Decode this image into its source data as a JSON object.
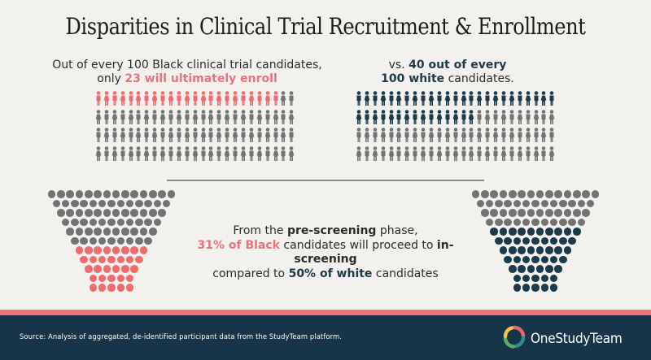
{
  "title": "Disparities in Clinical Trial Recruitment & Enrollment",
  "colors": {
    "background": "#F3F1EE",
    "black_highlight": "#F06B6E",
    "white_highlight": "#1B3A4B",
    "neutral": "#737373",
    "footer_bg": "#163548",
    "footer_strip": "#F07577"
  },
  "enrollment": {
    "left_caption": {
      "line1": "Out of every 100 Black clinical trial candidates,",
      "line2_prefix": "only ",
      "line2_highlight": "23 will ultimately enroll"
    },
    "right_caption": {
      "line1_prefix": "vs. ",
      "line1_highlight": "40 out of every",
      "line2_highlight": "100 white",
      "line2_suffix": " candidates."
    }
  },
  "screening": {
    "line1_prefix": "From the ",
    "line1_bold": "pre-screening",
    "line1_suffix": " phase,",
    "line2_highlight": "31% of Black",
    "line2_middle": " candidates will proceed to ",
    "line2_bold": "in-screening",
    "line3_prefix": "compared to ",
    "line3_highlight": "50% of white",
    "line3_suffix": " candidates"
  },
  "chart_data": [
    {
      "type": "pictogram",
      "title": "Black clinical trial candidates enrolling (out of 100)",
      "grid": {
        "columns": 25,
        "rows": 4
      },
      "total": 100,
      "highlighted": 23,
      "highlight_color": "#F06B6E",
      "neutral_color": "#737373",
      "label": "23 will ultimately enroll"
    },
    {
      "type": "pictogram",
      "title": "White clinical trial candidates enrolling (out of 100)",
      "grid": {
        "columns": 25,
        "rows": 4
      },
      "total": 100,
      "highlighted": 40,
      "highlight_color": "#1B3A4B",
      "neutral_color": "#737373",
      "label": "40 out of every 100 white candidates"
    },
    {
      "type": "funnel",
      "title": "Black candidates proceeding from pre-screening to in-screening",
      "row_counts": [
        14,
        13,
        12,
        11,
        10,
        9,
        8,
        7,
        6,
        5,
        5
      ],
      "total": 100,
      "highlighted": 31,
      "percent": 31,
      "highlight_color": "#F06B6E",
      "neutral_color": "#737373"
    },
    {
      "type": "funnel",
      "title": "White candidates proceeding from pre-screening to in-screening",
      "row_counts": [
        14,
        13,
        12,
        11,
        10,
        9,
        8,
        7,
        6,
        5,
        5
      ],
      "total": 100,
      "highlighted": 50,
      "percent": 50,
      "highlight_color": "#1B3A4B",
      "neutral_color": "#737373"
    }
  ],
  "footer": {
    "source": "Source: Analysis of aggregated, de-identified participant data from the StudyTeam platform.",
    "logo_text": "OneStudyTeam",
    "logo_icon": "swirl-logo-icon"
  }
}
